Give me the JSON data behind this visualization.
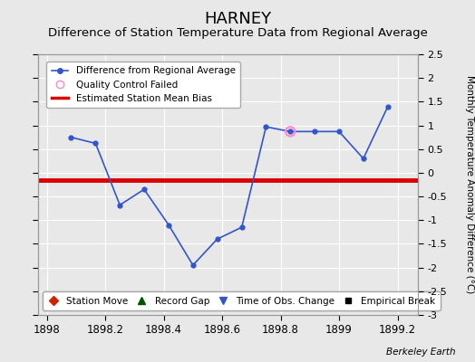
{
  "title": "HARNEY",
  "subtitle": "Difference of Station Temperature Data from Regional Average",
  "ylabel": "Monthly Temperature Anomaly Difference (°C)",
  "xlim": [
    1897.97,
    1899.27
  ],
  "ylim": [
    -3.0,
    2.5
  ],
  "yticks": [
    -3,
    -2.5,
    -2,
    -1.5,
    -1,
    -0.5,
    0,
    0.5,
    1,
    1.5,
    2,
    2.5
  ],
  "xticks": [
    1898,
    1898.2,
    1898.4,
    1898.6,
    1898.8,
    1899,
    1899.2
  ],
  "xtick_labels": [
    "1898",
    "1898.2",
    "1898.4",
    "1898.6",
    "1898.8",
    "1899",
    "1899.2"
  ],
  "line_x": [
    1898.083,
    1898.167,
    1898.25,
    1898.333,
    1898.417,
    1898.5,
    1898.583,
    1898.667,
    1898.75,
    1898.833,
    1898.917,
    1899.0,
    1899.083,
    1899.167
  ],
  "line_y": [
    0.75,
    0.62,
    -0.68,
    -0.35,
    -1.1,
    -1.95,
    -1.4,
    -1.15,
    0.97,
    0.87,
    0.87,
    0.87,
    0.3,
    1.4
  ],
  "qc_failed_x": [
    1898.833
  ],
  "qc_failed_y": [
    0.87
  ],
  "bias_y": -0.15,
  "line_color": "#3355cc",
  "bias_color": "#dd0000",
  "qc_color": "#ff88cc",
  "background_color": "#e8e8e8",
  "plot_bg_color": "#e8e8e8",
  "watermark": "Berkeley Earth",
  "title_fontsize": 13,
  "subtitle_fontsize": 9.5
}
